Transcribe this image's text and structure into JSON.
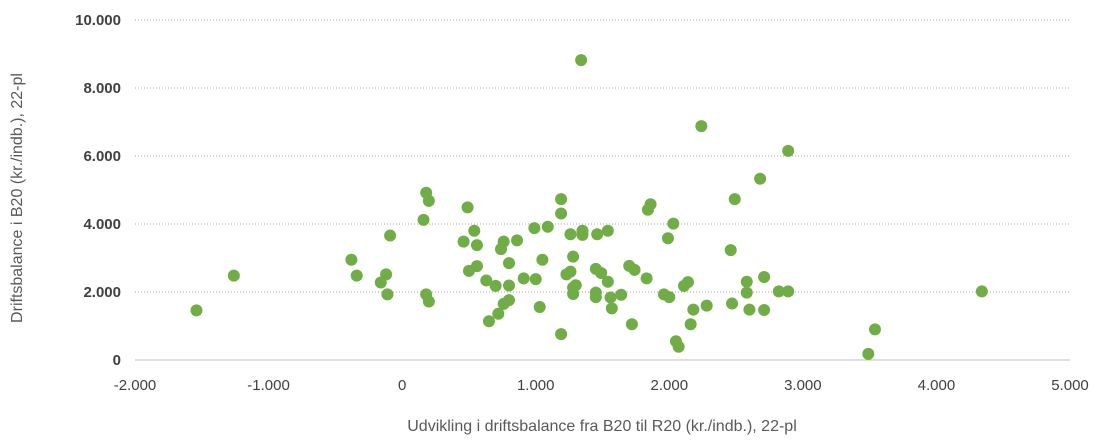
{
  "chart_data": {
    "type": "scatter",
    "xlabel": "Udvikling i driftsbalance fra B20 til R20 (kr./indb.), 22-pl",
    "ylabel": "Driftsbalance i B20 (kr./indb.), 22-pl",
    "xlim": [
      -2000,
      5000
    ],
    "ylim": [
      0,
      10000
    ],
    "x_ticks": [
      -2000,
      -1000,
      0,
      1000,
      2000,
      3000,
      4000,
      5000
    ],
    "x_tick_labels": [
      "-2.000",
      "-1.000",
      "0",
      "1.000",
      "2.000",
      "3.000",
      "4.000",
      "5.000"
    ],
    "y_ticks": [
      0,
      2000,
      4000,
      6000,
      8000,
      10000
    ],
    "y_tick_labels": [
      "0",
      "2.000",
      "4.000",
      "6.000",
      "8.000",
      "10.000"
    ],
    "grid": true,
    "marker_color": "#70AD47",
    "points": [
      [
        -1540,
        1460
      ],
      [
        -1260,
        2480
      ],
      [
        -380,
        2950
      ],
      [
        -340,
        2480
      ],
      [
        -160,
        2280
      ],
      [
        -120,
        2520
      ],
      [
        -110,
        1930
      ],
      [
        -90,
        3660
      ],
      [
        160,
        4120
      ],
      [
        180,
        4920
      ],
      [
        180,
        1930
      ],
      [
        200,
        1720
      ],
      [
        200,
        4680
      ],
      [
        460,
        3480
      ],
      [
        490,
        4490
      ],
      [
        500,
        2620
      ],
      [
        540,
        3800
      ],
      [
        560,
        3380
      ],
      [
        560,
        2760
      ],
      [
        630,
        2340
      ],
      [
        650,
        1140
      ],
      [
        700,
        2180
      ],
      [
        720,
        1360
      ],
      [
        740,
        3260
      ],
      [
        760,
        3480
      ],
      [
        760,
        1650
      ],
      [
        800,
        1760
      ],
      [
        800,
        2850
      ],
      [
        800,
        2190
      ],
      [
        860,
        3520
      ],
      [
        910,
        2400
      ],
      [
        990,
        3880
      ],
      [
        1000,
        2380
      ],
      [
        1030,
        1560
      ],
      [
        1050,
        2950
      ],
      [
        1090,
        3920
      ],
      [
        1190,
        4730
      ],
      [
        1190,
        4310
      ],
      [
        1190,
        760
      ],
      [
        1230,
        2520
      ],
      [
        1260,
        2600
      ],
      [
        1260,
        3700
      ],
      [
        1280,
        3040
      ],
      [
        1280,
        2130
      ],
      [
        1280,
        1940
      ],
      [
        1300,
        2200
      ],
      [
        1340,
        8820
      ],
      [
        1350,
        3800
      ],
      [
        1350,
        3680
      ],
      [
        1350,
        3760
      ],
      [
        1450,
        2680
      ],
      [
        1450,
        1980
      ],
      [
        1450,
        1850
      ],
      [
        1460,
        3700
      ],
      [
        1490,
        2560
      ],
      [
        1540,
        3800
      ],
      [
        1540,
        2300
      ],
      [
        1560,
        1840
      ],
      [
        1570,
        1520
      ],
      [
        1640,
        1920
      ],
      [
        1700,
        2770
      ],
      [
        1720,
        1050
      ],
      [
        1740,
        2650
      ],
      [
        1830,
        2400
      ],
      [
        1840,
        4420
      ],
      [
        1860,
        4580
      ],
      [
        1960,
        1930
      ],
      [
        1990,
        3580
      ],
      [
        2000,
        1850
      ],
      [
        2030,
        4010
      ],
      [
        2050,
        550
      ],
      [
        2070,
        390
      ],
      [
        2110,
        2180
      ],
      [
        2140,
        2290
      ],
      [
        2160,
        1050
      ],
      [
        2180,
        1480
      ],
      [
        2240,
        6880
      ],
      [
        2280,
        1600
      ],
      [
        2460,
        3230
      ],
      [
        2470,
        1660
      ],
      [
        2490,
        4730
      ],
      [
        2580,
        2300
      ],
      [
        2580,
        1980
      ],
      [
        2600,
        1480
      ],
      [
        2680,
        5330
      ],
      [
        2710,
        2440
      ],
      [
        2710,
        1470
      ],
      [
        2820,
        2020
      ],
      [
        2890,
        6150
      ],
      [
        2890,
        2020
      ],
      [
        3490,
        180
      ],
      [
        3540,
        900
      ],
      [
        4340,
        2020
      ]
    ]
  }
}
